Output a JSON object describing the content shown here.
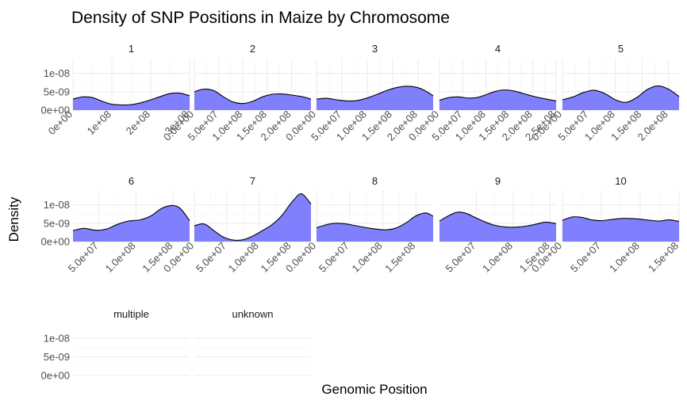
{
  "chart_data": {
    "type": "area",
    "title": "Density of SNP Positions in Maize by Chromosome",
    "xlabel": "Genomic Position",
    "ylabel": "Density",
    "ylim": [
      0,
      1.4e-08
    ],
    "y_ticks": [
      0,
      5e-09,
      1e-08
    ],
    "y_tick_labels": [
      "0e+00",
      "5e-09",
      "1e-08"
    ],
    "grid": true,
    "fill_color": "#8080ff",
    "line_color": "#000000",
    "panels": [
      {
        "name": "1",
        "xlim": [
          0,
          300000000.0
        ],
        "x_ticks": [
          0,
          100000000.0,
          200000000.0,
          300000000.0
        ],
        "x_tick_labels": [
          "0e+00",
          "1e+08",
          "2e+08",
          "3e+08"
        ],
        "x": [
          0,
          25000000.0,
          50000000.0,
          75000000.0,
          100000000.0,
          125000000.0,
          150000000.0,
          175000000.0,
          200000000.0,
          225000000.0,
          250000000.0,
          275000000.0,
          300000000.0
        ],
        "y": [
          3e-09,
          3.6e-09,
          3.4e-09,
          2.4e-09,
          1.6e-09,
          1.4e-09,
          1.5e-09,
          2e-09,
          2.8e-09,
          3.7e-09,
          4.5e-09,
          4.6e-09,
          3.9e-09
        ]
      },
      {
        "name": "2",
        "xlim": [
          0,
          240000000.0
        ],
        "x_ticks": [
          0,
          50000000.0,
          100000000.0,
          150000000.0,
          200000000.0
        ],
        "x_tick_labels": [
          "0.0e+00",
          "5.0e+07",
          "1.0e+08",
          "1.5e+08",
          "2.0e+08"
        ],
        "x": [
          0,
          20000000.0,
          40000000.0,
          60000000.0,
          80000000.0,
          100000000.0,
          120000000.0,
          140000000.0,
          160000000.0,
          180000000.0,
          200000000.0,
          220000000.0,
          240000000.0
        ],
        "y": [
          5e-09,
          5.7e-09,
          5.3e-09,
          3.6e-09,
          2.2e-09,
          1.8e-09,
          2.4e-09,
          3.6e-09,
          4.3e-09,
          4.4e-09,
          4.1e-09,
          3.7e-09,
          3e-09
        ]
      },
      {
        "name": "3",
        "xlim": [
          0,
          230000000.0
        ],
        "x_ticks": [
          0,
          50000000.0,
          100000000.0,
          150000000.0,
          200000000.0
        ],
        "x_tick_labels": [
          "0.0e+00",
          "5.0e+07",
          "1.0e+08",
          "1.5e+08",
          "2.0e+08"
        ],
        "x": [
          0,
          20000000.0,
          40000000.0,
          60000000.0,
          80000000.0,
          100000000.0,
          120000000.0,
          140000000.0,
          160000000.0,
          180000000.0,
          200000000.0,
          215000000.0,
          230000000.0
        ],
        "y": [
          3e-09,
          3.2e-09,
          2.8e-09,
          2.5e-09,
          2.6e-09,
          3.3e-09,
          4.3e-09,
          5.4e-09,
          6.2e-09,
          6.5e-09,
          6.1e-09,
          5.2e-09,
          3.9e-09
        ]
      },
      {
        "name": "4",
        "xlim": [
          0,
          250000000.0
        ],
        "x_ticks": [
          0,
          50000000.0,
          100000000.0,
          150000000.0,
          200000000.0,
          250000000.0
        ],
        "x_tick_labels": [
          "0.0e+00",
          "5.0e+07",
          "1.0e+08",
          "1.5e+08",
          "2.0e+08",
          "2.5e+08"
        ],
        "x": [
          0,
          20000000.0,
          40000000.0,
          60000000.0,
          80000000.0,
          100000000.0,
          120000000.0,
          140000000.0,
          160000000.0,
          180000000.0,
          200000000.0,
          220000000.0,
          250000000.0
        ],
        "y": [
          2.7e-09,
          3.4e-09,
          3.6e-09,
          3.3e-09,
          3.4e-09,
          4.2e-09,
          5.1e-09,
          5.5e-09,
          5.2e-09,
          4.5e-09,
          3.8e-09,
          3.2e-09,
          2.5e-09
        ]
      },
      {
        "name": "5",
        "xlim": [
          0,
          220000000.0
        ],
        "x_ticks": [
          0,
          50000000.0,
          100000000.0,
          150000000.0,
          200000000.0
        ],
        "x_tick_labels": [
          "0.0e+00",
          "5.0e+07",
          "1.0e+08",
          "1.5e+08",
          "2.0e+08"
        ],
        "x": [
          0,
          20000000.0,
          40000000.0,
          60000000.0,
          80000000.0,
          100000000.0,
          120000000.0,
          140000000.0,
          160000000.0,
          180000000.0,
          200000000.0,
          220000000.0
        ],
        "y": [
          2.8e-09,
          3.6e-09,
          4.8e-09,
          5.4e-09,
          4.5e-09,
          2.8e-09,
          2.1e-09,
          3.4e-09,
          5.6e-09,
          6.6e-09,
          5.7e-09,
          3.7e-09
        ]
      },
      {
        "name": "6",
        "xlim": [
          15000000.0,
          172000000.0
        ],
        "x_ticks": [
          50000000.0,
          100000000.0,
          150000000.0
        ],
        "x_tick_labels": [
          "5.0e+07",
          "1.0e+08",
          "1.5e+08"
        ],
        "x": [
          15000000.0,
          30000000.0,
          45000000.0,
          60000000.0,
          75000000.0,
          90000000.0,
          105000000.0,
          120000000.0,
          135000000.0,
          150000000.0,
          160000000.0,
          172000000.0
        ],
        "y": [
          3e-09,
          3.6e-09,
          3.1e-09,
          3.4e-09,
          4.7e-09,
          5.6e-09,
          5.9e-09,
          7e-09,
          9.1e-09,
          9.8e-09,
          8.9e-09,
          5.7e-09
        ]
      },
      {
        "name": "7",
        "xlim": [
          0,
          180000000.0
        ],
        "x_ticks": [
          0,
          50000000.0,
          100000000.0,
          150000000.0
        ],
        "x_tick_labels": [
          "0.0e+00",
          "5.0e+07",
          "1.0e+08",
          "1.5e+08"
        ],
        "x": [
          0,
          15000000.0,
          30000000.0,
          45000000.0,
          60000000.0,
          75000000.0,
          90000000.0,
          105000000.0,
          120000000.0,
          135000000.0,
          150000000.0,
          165000000.0,
          180000000.0
        ],
        "y": [
          4.3e-09,
          4.8e-09,
          3e-09,
          1.2e-09,
          4e-10,
          5e-10,
          1.5e-09,
          3e-09,
          4.6e-09,
          7.1e-09,
          1.06e-08,
          1.3e-08,
          1.02e-08
        ]
      },
      {
        "name": "8",
        "xlim": [
          0,
          176000000.0
        ],
        "x_ticks": [
          0,
          50000000.0,
          100000000.0,
          150000000.0
        ],
        "x_tick_labels": [
          "0.0e+00",
          "5.0e+07",
          "1.0e+08",
          "1.5e+08"
        ],
        "x": [
          0,
          15000000.0,
          30000000.0,
          45000000.0,
          60000000.0,
          75000000.0,
          90000000.0,
          105000000.0,
          120000000.0,
          135000000.0,
          150000000.0,
          165000000.0,
          176000000.0
        ],
        "y": [
          3.8e-09,
          4.6e-09,
          5e-09,
          4.8e-09,
          4.3e-09,
          3.8e-09,
          3.4e-09,
          3.2e-09,
          3.7e-09,
          5.1e-09,
          7e-09,
          7.8e-09,
          6.9e-09
        ]
      },
      {
        "name": "9",
        "xlim": [
          0,
          158000000.0
        ],
        "x_ticks": [
          50000000.0,
          100000000.0,
          150000000.0
        ],
        "x_tick_labels": [
          "5.0e+07",
          "1.0e+08",
          "1.5e+08"
        ],
        "x": [
          0,
          12000000.0,
          24000000.0,
          36000000.0,
          48000000.0,
          60000000.0,
          72000000.0,
          84000000.0,
          96000000.0,
          108000000.0,
          120000000.0,
          132000000.0,
          144000000.0,
          158000000.0
        ],
        "y": [
          5.6e-09,
          7e-09,
          8e-09,
          7.7e-09,
          6.6e-09,
          5.5e-09,
          4.6e-09,
          4.1e-09,
          3.9e-09,
          4e-09,
          4.3e-09,
          4.8e-09,
          5.3e-09,
          4.9e-09
        ]
      },
      {
        "name": "10",
        "xlim": [
          0,
          150000000.0
        ],
        "x_ticks": [
          0,
          50000000.0,
          100000000.0,
          150000000.0
        ],
        "x_tick_labels": [
          "0.0e+00",
          "5.0e+07",
          "1.0e+08",
          "1.5e+08"
        ],
        "x": [
          0,
          12500000.0,
          25000000.0,
          37500000.0,
          50000000.0,
          62500000.0,
          75000000.0,
          87500000.0,
          100000000.0,
          112500000.0,
          125000000.0,
          137500000.0,
          150000000.0
        ],
        "y": [
          5.8e-09,
          6.7e-09,
          6.6e-09,
          5.9e-09,
          5.7e-09,
          6e-09,
          6.3e-09,
          6.3e-09,
          6.1e-09,
          5.8e-09,
          5.6e-09,
          5.9e-09,
          5.5e-09
        ]
      },
      {
        "name": "multiple",
        "x": [],
        "y": []
      },
      {
        "name": "unknown",
        "x": [],
        "y": []
      }
    ]
  }
}
